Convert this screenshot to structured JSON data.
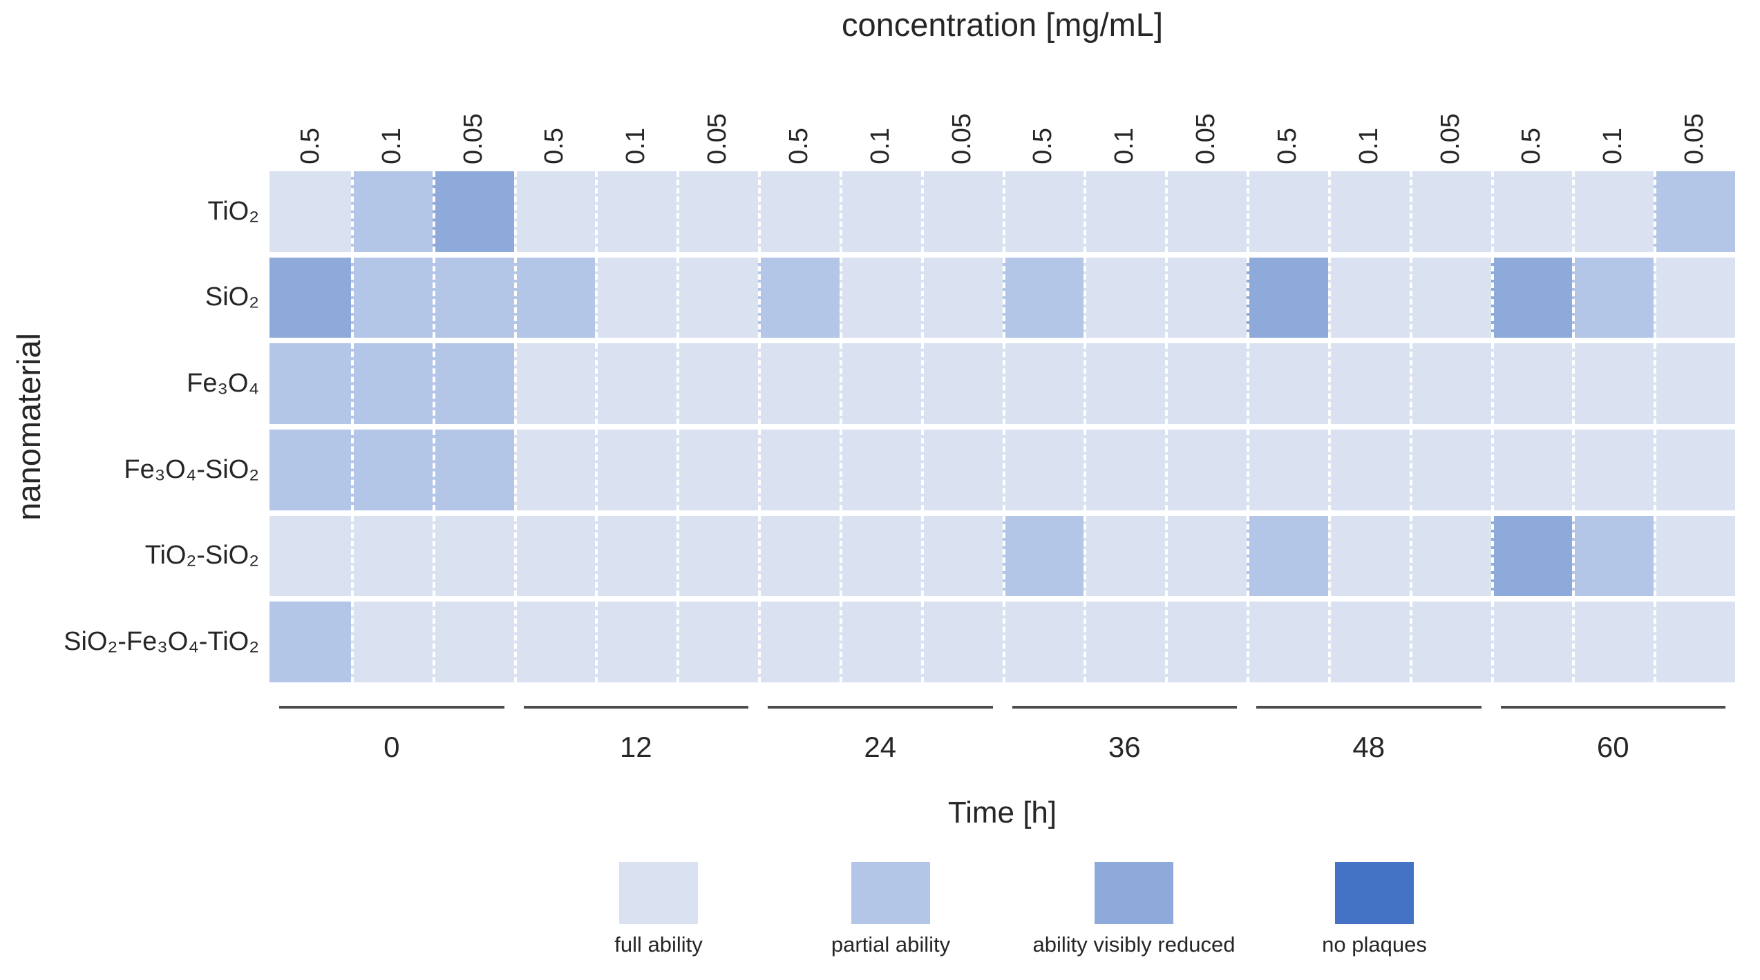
{
  "chart_data": {
    "type": "heatmap",
    "title": "concentration [mg/mL]",
    "xlabel": "Time [h]",
    "ylabel": "nanomaterial",
    "x_groups": {
      "times": [
        "0",
        "12",
        "24",
        "36",
        "48",
        "60"
      ],
      "concentrations_per_time": [
        "0.5",
        "0.1",
        "0.05"
      ]
    },
    "y_categories": [
      "TiO₂",
      "SiO₂",
      "Fe₃O₄",
      "Fe₃O₄-SiO₂",
      "TiO₂-SiO₂",
      "SiO₂-Fe₃O₄-TiO₂"
    ],
    "legend": [
      {
        "label": "full ability",
        "color": "#dae2f2"
      },
      {
        "label": "partial ability",
        "color": "#b4c6e7"
      },
      {
        "label": "ability visibly reduced",
        "color": "#8eaadb"
      },
      {
        "label": "no plaques",
        "color": "#4472c4"
      }
    ],
    "legend_position": "bottom",
    "grid": "white dashed cell separators",
    "value_meaning": "index into legend: 0=full ability, 1=partial ability, 2=ability visibly reduced, 3=no plaques",
    "columns_order": "for each time (0,12,24,36,48,60) three concentrations (0.5, 0.1, 0.05)",
    "values_matrix": [
      [
        0,
        1,
        2,
        0,
        0,
        0,
        0,
        0,
        0,
        0,
        0,
        0,
        0,
        0,
        0,
        0,
        0,
        1
      ],
      [
        2,
        1,
        1,
        1,
        0,
        0,
        1,
        0,
        0,
        1,
        0,
        0,
        2,
        0,
        0,
        2,
        1,
        0
      ],
      [
        1,
        1,
        1,
        0,
        0,
        0,
        0,
        0,
        0,
        0,
        0,
        0,
        0,
        0,
        0,
        0,
        0,
        0
      ],
      [
        1,
        1,
        1,
        0,
        0,
        0,
        0,
        0,
        0,
        0,
        0,
        0,
        0,
        0,
        0,
        0,
        0,
        0
      ],
      [
        0,
        0,
        0,
        0,
        0,
        0,
        0,
        0,
        0,
        1,
        0,
        0,
        1,
        0,
        0,
        2,
        1,
        0
      ],
      [
        1,
        0,
        0,
        0,
        0,
        0,
        0,
        0,
        0,
        0,
        0,
        0,
        0,
        0,
        0,
        0,
        0,
        0
      ]
    ]
  }
}
